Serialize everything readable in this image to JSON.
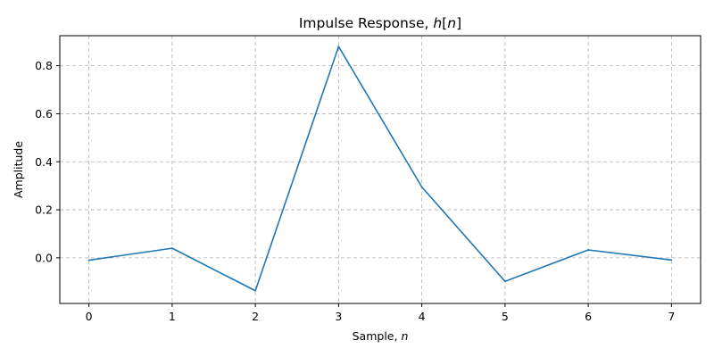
{
  "chart_data": {
    "type": "line",
    "title": "Impulse Response, h[n]",
    "title_parts": {
      "prefix": "Impulse Response, ",
      "var": "h",
      "open": "[",
      "index": "n",
      "close": "]"
    },
    "xlabel": "Sample, n",
    "xlabel_parts": {
      "prefix": "Sample, ",
      "var": "n"
    },
    "ylabel": "Amplitude",
    "x": [
      0,
      1,
      2,
      3,
      4,
      5,
      6,
      7
    ],
    "series": [
      {
        "values": [
          -0.01,
          0.04,
          -0.137,
          0.88,
          0.295,
          -0.098,
          0.033,
          -0.009
        ],
        "color": "#1f77b4"
      }
    ],
    "xlim": [
      -0.35,
      7.35
    ],
    "ylim": [
      -0.19,
      0.925
    ],
    "xticks": [
      0,
      1,
      2,
      3,
      4,
      5,
      6,
      7
    ],
    "xtick_labels": [
      "0",
      "1",
      "2",
      "3",
      "4",
      "5",
      "6",
      "7"
    ],
    "yticks": [
      0.0,
      0.2,
      0.4,
      0.6,
      0.8
    ],
    "ytick_labels": [
      "0.0",
      "0.2",
      "0.4",
      "0.6",
      "0.8"
    ],
    "grid": true,
    "grid_style": "dashed",
    "grid_color": "#b0b0b0"
  }
}
